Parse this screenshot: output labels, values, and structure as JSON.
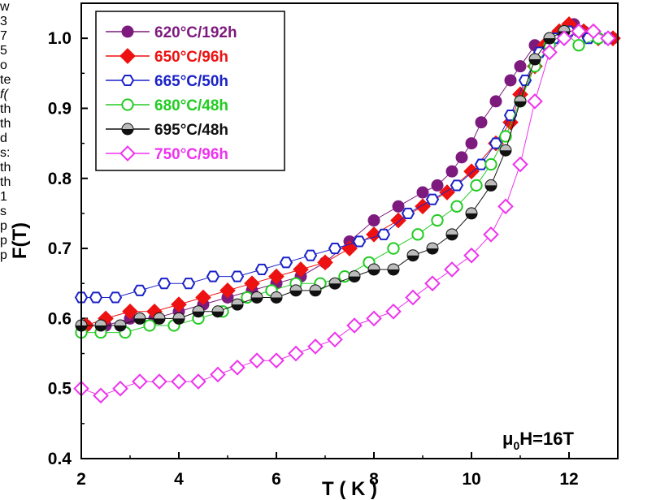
{
  "chart_data": {
    "type": "scatter",
    "title": "",
    "xlabel": "T ( K )",
    "ylabel": "F(T)",
    "xlim": [
      2,
      13
    ],
    "ylim": [
      0.4,
      1.05
    ],
    "x_ticks": [
      2,
      4,
      6,
      8,
      10,
      12
    ],
    "y_ticks": [
      0.4,
      0.5,
      0.6,
      0.7,
      0.8,
      0.9,
      1.0
    ],
    "x_tick_labels": [
      "2",
      "4",
      "6",
      "8",
      "10",
      "12"
    ],
    "y_tick_labels": [
      "0.4",
      "0.5",
      "0.6",
      "0.7",
      "0.8",
      "0.9",
      "1.0"
    ],
    "annotation": {
      "prefix": "μ",
      "sub": "0",
      "rest": "H=16T"
    },
    "legend_position": "top-left",
    "series": [
      {
        "name": "620°C/192h",
        "color": "#7d1a7e",
        "marker": "circle-filled",
        "x": [
          2.1,
          2.5,
          3.0,
          3.5,
          4.0,
          4.5,
          5.0,
          5.5,
          6.0,
          6.5,
          7.0,
          7.5,
          8.0,
          8.5,
          9.0,
          9.3,
          9.6,
          9.8,
          10.0,
          10.2,
          10.5,
          10.8,
          11.0,
          11.3,
          11.6,
          11.9,
          12.1,
          12.3,
          12.6,
          12.9
        ],
        "y": [
          0.59,
          0.59,
          0.6,
          0.6,
          0.61,
          0.62,
          0.63,
          0.64,
          0.65,
          0.66,
          0.68,
          0.71,
          0.74,
          0.76,
          0.78,
          0.79,
          0.81,
          0.83,
          0.85,
          0.88,
          0.91,
          0.94,
          0.96,
          0.99,
          1.0,
          1.01,
          1.02,
          1.01,
          1.0,
          1.0
        ]
      },
      {
        "name": "650°C/96h",
        "color": "#ee1111",
        "marker": "diamond-filled",
        "x": [
          2.1,
          2.5,
          3.0,
          3.5,
          4.0,
          4.5,
          5.0,
          5.5,
          6.0,
          6.5,
          7.0,
          7.5,
          8.0,
          8.5,
          9.0,
          9.5,
          10.0,
          10.5,
          10.8,
          11.0,
          11.3,
          11.5,
          11.8,
          12.0,
          12.3,
          12.6,
          12.9
        ],
        "y": [
          0.59,
          0.6,
          0.61,
          0.61,
          0.62,
          0.63,
          0.64,
          0.65,
          0.66,
          0.67,
          0.68,
          0.7,
          0.72,
          0.74,
          0.76,
          0.78,
          0.81,
          0.85,
          0.88,
          0.92,
          0.96,
          0.99,
          1.01,
          1.02,
          1.01,
          1.0,
          1.0
        ]
      },
      {
        "name": "665°C/50h",
        "color": "#1a22c8",
        "marker": "hexagon-open",
        "x": [
          2.0,
          2.3,
          2.7,
          3.2,
          3.7,
          4.2,
          4.7,
          5.2,
          5.7,
          6.2,
          6.7,
          7.2,
          7.7,
          8.2,
          8.7,
          9.2,
          9.7,
          10.2,
          10.5,
          10.8,
          11.1,
          11.4,
          11.7,
          12.0,
          12.4,
          12.8
        ],
        "y": [
          0.63,
          0.63,
          0.63,
          0.64,
          0.65,
          0.65,
          0.66,
          0.66,
          0.67,
          0.68,
          0.69,
          0.7,
          0.71,
          0.72,
          0.75,
          0.77,
          0.79,
          0.82,
          0.85,
          0.89,
          0.94,
          0.98,
          1.0,
          1.01,
          1.0,
          1.0
        ]
      },
      {
        "name": "680°C/48h",
        "color": "#22cc22",
        "marker": "circle-open",
        "x": [
          2.0,
          2.4,
          2.9,
          3.4,
          3.9,
          4.4,
          4.9,
          5.4,
          5.9,
          6.4,
          6.9,
          7.4,
          7.9,
          8.4,
          8.9,
          9.3,
          9.7,
          10.1,
          10.4,
          10.7,
          11.0,
          11.3,
          11.6,
          11.9,
          12.2,
          12.6
        ],
        "y": [
          0.58,
          0.58,
          0.58,
          0.59,
          0.59,
          0.6,
          0.61,
          0.63,
          0.64,
          0.65,
          0.65,
          0.66,
          0.68,
          0.7,
          0.72,
          0.74,
          0.76,
          0.79,
          0.82,
          0.86,
          0.91,
          0.96,
          0.99,
          1.01,
          0.99,
          1.0
        ]
      },
      {
        "name": "695°C/48h",
        "color": "#111111",
        "marker": "sphere",
        "x": [
          2.0,
          2.4,
          2.8,
          3.2,
          3.6,
          4.0,
          4.4,
          4.8,
          5.2,
          5.6,
          6.0,
          6.4,
          6.8,
          7.2,
          7.6,
          8.0,
          8.4,
          8.8,
          9.2,
          9.6,
          10.0,
          10.4,
          10.7,
          11.0,
          11.3,
          11.6,
          11.9,
          12.2
        ],
        "y": [
          0.59,
          0.59,
          0.59,
          0.6,
          0.6,
          0.6,
          0.61,
          0.61,
          0.62,
          0.63,
          0.63,
          0.64,
          0.64,
          0.65,
          0.66,
          0.67,
          0.67,
          0.69,
          0.7,
          0.72,
          0.75,
          0.79,
          0.84,
          0.91,
          0.97,
          1.0,
          1.01,
          1.01
        ]
      },
      {
        "name": "750°C/96h",
        "color": "#ee33ee",
        "marker": "diamond-open",
        "x": [
          2.0,
          2.4,
          2.8,
          3.2,
          3.6,
          4.0,
          4.4,
          4.8,
          5.2,
          5.6,
          6.0,
          6.4,
          6.8,
          7.2,
          7.6,
          8.0,
          8.4,
          8.8,
          9.2,
          9.6,
          10.0,
          10.4,
          10.7,
          11.0,
          11.3,
          11.6,
          11.9,
          12.2,
          12.5,
          12.8
        ],
        "y": [
          0.5,
          0.49,
          0.5,
          0.51,
          0.51,
          0.51,
          0.51,
          0.52,
          0.53,
          0.54,
          0.54,
          0.55,
          0.56,
          0.57,
          0.59,
          0.6,
          0.61,
          0.63,
          0.65,
          0.67,
          0.69,
          0.72,
          0.76,
          0.82,
          0.91,
          0.98,
          1.0,
          1.01,
          1.01,
          1.0
        ]
      }
    ]
  },
  "side_text_lines": [
    "w",
    "3",
    "7",
    "5",
    "o",
    "te",
    "f(",
    "th",
    "th",
    "d",
    "s:",
    "th",
    "th",
    "1",
    "s",
    "p",
    "p",
    "p"
  ]
}
